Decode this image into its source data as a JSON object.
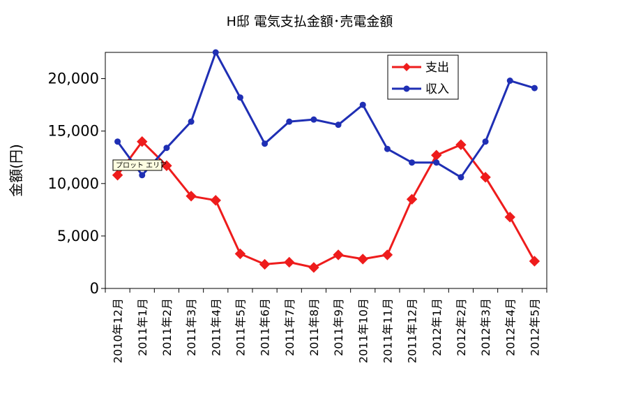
{
  "chart_data": {
    "type": "line",
    "title": "H邸 電気支払金額･売電金額",
    "ylabel": "金額(円)",
    "xlabel": "",
    "categories": [
      "2010年12月",
      "2011年1月",
      "2011年2月",
      "2011年3月",
      "2011年4月",
      "2011年5月",
      "2011年6月",
      "2011年7月",
      "2011年8月",
      "2011年9月",
      "2011年10月",
      "2011年11月",
      "2011年12月",
      "2012年1月",
      "2012年2月",
      "2012年3月",
      "2012年4月",
      "2012年5月"
    ],
    "ylim": [
      0,
      22500
    ],
    "yticks": [
      0,
      5000,
      10000,
      15000,
      20000
    ],
    "ytick_labels": [
      "0",
      "5,000",
      "10,000",
      "15,000",
      "20,000"
    ],
    "grid": false,
    "legend_position": "top-right",
    "series": [
      {
        "name": "支出",
        "color": "#ee1c1c",
        "marker": "diamond",
        "values": [
          10800,
          14000,
          11700,
          8800,
          8400,
          3300,
          2300,
          2500,
          2000,
          3200,
          2800,
          3200,
          8500,
          12700,
          13700,
          10600,
          6800,
          2600
        ]
      },
      {
        "name": "収入",
        "color": "#1f2fb4",
        "marker": "circle",
        "values": [
          14000,
          10800,
          13400,
          15900,
          22500,
          18200,
          13800,
          15900,
          16100,
          15600,
          17500,
          13300,
          12000,
          12000,
          10600,
          14000,
          19800,
          19100
        ]
      }
    ],
    "tooltip": "プロット エリア"
  }
}
